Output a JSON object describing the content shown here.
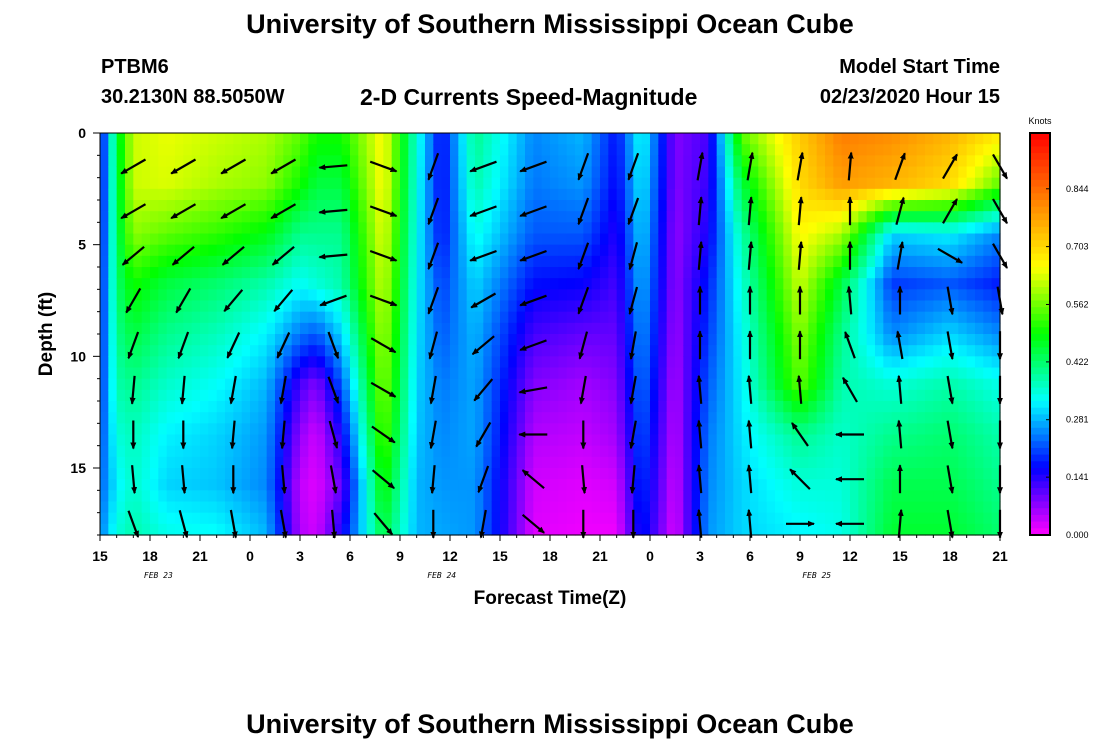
{
  "header": {
    "title": "University of Southern Mississippi Ocean Cube",
    "station": "PTBM6",
    "coordinates": "30.2130N 88.5050W",
    "subtitle": "2-D Currents Speed-Magnitude",
    "model_start_label": "Model Start Time",
    "model_start_value": "02/23/2020 Hour 15"
  },
  "footer": {
    "title": "University of Southern Mississippi Ocean Cube"
  },
  "chart_data": {
    "type": "heatmap",
    "xlabel": "Forecast Time(Z)",
    "ylabel": "Depth (ft)",
    "x_ticks": [
      "15",
      "18",
      "21",
      "0",
      "3",
      "6",
      "9",
      "12",
      "15",
      "18",
      "21",
      "0",
      "3",
      "6",
      "9",
      "12",
      "15",
      "18",
      "21"
    ],
    "date_labels": [
      {
        "text": "FEB 23",
        "hour_index": 3.5
      },
      {
        "text": "FEB 24",
        "hour_index": 20.5
      },
      {
        "text": "FEB 25",
        "hour_index": 43
      }
    ],
    "x_range_hours": [
      0,
      54
    ],
    "y_ticks": [
      0,
      5,
      10,
      15
    ],
    "ylim": [
      0,
      18
    ],
    "y_inverted": true,
    "colorbar": {
      "label": "Knots",
      "ticks": [
        "0.000",
        "0.141",
        "0.281",
        "0.422",
        "0.562",
        "0.703",
        "0.844"
      ],
      "range": [
        0,
        0.98
      ],
      "colors": [
        "#ff00ff",
        "#0000ff",
        "#00ffff",
        "#00ff00",
        "#ffff00",
        "#ff8000",
        "#ff0000"
      ]
    },
    "speed_columns": [
      {
        "hour": 0,
        "speeds": [
          0.14,
          0.14,
          0.15,
          0.16,
          0.17,
          0.18,
          0.2,
          0.22,
          0.24
        ]
      },
      {
        "hour": 1,
        "speeds": [
          0.45,
          0.44,
          0.43,
          0.42,
          0.4,
          0.38,
          0.35,
          0.32,
          0.35
        ]
      },
      {
        "hour": 2,
        "speeds": [
          0.62,
          0.62,
          0.58,
          0.5,
          0.45,
          0.4,
          0.37,
          0.36,
          0.38
        ]
      },
      {
        "hour": 4,
        "speeds": [
          0.64,
          0.63,
          0.55,
          0.45,
          0.4,
          0.36,
          0.32,
          0.3,
          0.34
        ]
      },
      {
        "hour": 7,
        "speeds": [
          0.62,
          0.6,
          0.52,
          0.42,
          0.37,
          0.33,
          0.3,
          0.29,
          0.33
        ]
      },
      {
        "hour": 10,
        "speeds": [
          0.6,
          0.58,
          0.48,
          0.38,
          0.32,
          0.28,
          0.26,
          0.25,
          0.28
        ]
      },
      {
        "hour": 12,
        "speeds": [
          0.55,
          0.5,
          0.4,
          0.33,
          0.24,
          0.12,
          0.07,
          0.04,
          0.05
        ]
      },
      {
        "hour": 13,
        "speeds": [
          0.5,
          0.45,
          0.4,
          0.35,
          0.22,
          0.08,
          0.03,
          0.02,
          0.03
        ]
      },
      {
        "hour": 14.5,
        "speeds": [
          0.5,
          0.45,
          0.4,
          0.38,
          0.3,
          0.22,
          0.15,
          0.1,
          0.15
        ]
      },
      {
        "hour": 17,
        "speeds": [
          0.66,
          0.66,
          0.64,
          0.62,
          0.6,
          0.58,
          0.55,
          0.5,
          0.45
        ]
      },
      {
        "hour": 19,
        "speeds": [
          0.35,
          0.34,
          0.33,
          0.32,
          0.31,
          0.3,
          0.29,
          0.28,
          0.28
        ]
      },
      {
        "hour": 20.5,
        "speeds": [
          0.16,
          0.16,
          0.17,
          0.2,
          0.22,
          0.24,
          0.25,
          0.26,
          0.27
        ]
      },
      {
        "hour": 22.5,
        "speeds": [
          0.4,
          0.38,
          0.34,
          0.3,
          0.28,
          0.27,
          0.27,
          0.26,
          0.26
        ]
      },
      {
        "hour": 26,
        "speeds": [
          0.25,
          0.24,
          0.22,
          0.17,
          0.12,
          0.08,
          0.05,
          0.03,
          0.02
        ]
      },
      {
        "hour": 29,
        "speeds": [
          0.28,
          0.26,
          0.22,
          0.16,
          0.1,
          0.06,
          0.04,
          0.02,
          0.01
        ]
      },
      {
        "hour": 31,
        "speeds": [
          0.17,
          0.16,
          0.14,
          0.12,
          0.1,
          0.08,
          0.06,
          0.03,
          0.01
        ]
      },
      {
        "hour": 32.5,
        "speeds": [
          0.34,
          0.32,
          0.3,
          0.28,
          0.26,
          0.24,
          0.22,
          0.2,
          0.18
        ]
      },
      {
        "hour": 34.5,
        "speeds": [
          0.08,
          0.08,
          0.07,
          0.07,
          0.06,
          0.05,
          0.04,
          0.03,
          0.02
        ]
      },
      {
        "hour": 36.5,
        "speeds": [
          0.12,
          0.13,
          0.15,
          0.18,
          0.2,
          0.22,
          0.24,
          0.25,
          0.26
        ]
      },
      {
        "hour": 38.5,
        "speeds": [
          0.55,
          0.45,
          0.38,
          0.35,
          0.33,
          0.32,
          0.31,
          0.3,
          0.3
        ]
      },
      {
        "hour": 42,
        "speeds": [
          0.72,
          0.7,
          0.66,
          0.62,
          0.58,
          0.55,
          0.4,
          0.35,
          0.32
        ]
      },
      {
        "hour": 44.5,
        "speeds": [
          0.82,
          0.78,
          0.6,
          0.45,
          0.4,
          0.38,
          0.36,
          0.35,
          0.34
        ]
      },
      {
        "hour": 47.5,
        "speeds": [
          0.8,
          0.75,
          0.3,
          0.2,
          0.25,
          0.35,
          0.4,
          0.44,
          0.46
        ]
      },
      {
        "hour": 51,
        "speeds": [
          0.75,
          0.7,
          0.32,
          0.22,
          0.3,
          0.38,
          0.42,
          0.44,
          0.46
        ]
      },
      {
        "hour": 54,
        "speeds": [
          0.68,
          0.55,
          0.25,
          0.18,
          0.25,
          0.34,
          0.38,
          0.4,
          0.42
        ]
      }
    ],
    "vector_depths_ft": [
      1.5,
      3.5,
      5.5,
      7.5,
      9.5,
      11.5,
      13.5,
      15.5,
      17.5
    ],
    "vector_columns": [
      {
        "hour": 2,
        "dirs": [
          150,
          150,
          140,
          120,
          110,
          95,
          90,
          85,
          70
        ]
      },
      {
        "hour": 5,
        "dirs": [
          150,
          150,
          140,
          120,
          110,
          95,
          90,
          85,
          75
        ]
      },
      {
        "hour": 8,
        "dirs": [
          150,
          150,
          140,
          130,
          115,
          100,
          95,
          90,
          80
        ]
      },
      {
        "hour": 11,
        "dirs": [
          150,
          150,
          140,
          130,
          115,
          100,
          95,
          85,
          80
        ]
      },
      {
        "hour": 14,
        "dirs": [
          175,
          175,
          175,
          160,
          70,
          70,
          75,
          80,
          85
        ]
      },
      {
        "hour": 17,
        "dirs": [
          20,
          20,
          20,
          20,
          30,
          30,
          35,
          40,
          50
        ]
      },
      {
        "hour": 20,
        "dirs": [
          110,
          110,
          110,
          110,
          105,
          100,
          100,
          95,
          90
        ]
      },
      {
        "hour": 23,
        "dirs": [
          160,
          160,
          160,
          150,
          140,
          130,
          120,
          110,
          100
        ]
      },
      {
        "hour": 26,
        "dirs": [
          160,
          160,
          160,
          160,
          160,
          170,
          180,
          220,
          40
        ]
      },
      {
        "hour": 29,
        "dirs": [
          110,
          110,
          110,
          110,
          105,
          100,
          90,
          85,
          90
        ]
      },
      {
        "hour": 32,
        "dirs": [
          110,
          110,
          105,
          105,
          100,
          100,
          100,
          95,
          90
        ]
      },
      {
        "hour": 36,
        "dirs": [
          280,
          275,
          275,
          270,
          270,
          265,
          265,
          265,
          265
        ]
      },
      {
        "hour": 39,
        "dirs": [
          280,
          275,
          275,
          270,
          270,
          265,
          265,
          265,
          265
        ]
      },
      {
        "hour": 42,
        "dirs": [
          280,
          275,
          275,
          270,
          270,
          265,
          235,
          225,
          0
        ]
      },
      {
        "hour": 45,
        "dirs": [
          275,
          270,
          270,
          265,
          250,
          240,
          180,
          180,
          180
        ]
      },
      {
        "hour": 48,
        "dirs": [
          290,
          285,
          280,
          270,
          260,
          265,
          265,
          270,
          275
        ]
      },
      {
        "hour": 51,
        "dirs": [
          300,
          300,
          30,
          80,
          80,
          80,
          80,
          80,
          80
        ]
      },
      {
        "hour": 54,
        "dirs": [
          60,
          60,
          60,
          80,
          90,
          90,
          90,
          90,
          90
        ]
      }
    ]
  }
}
